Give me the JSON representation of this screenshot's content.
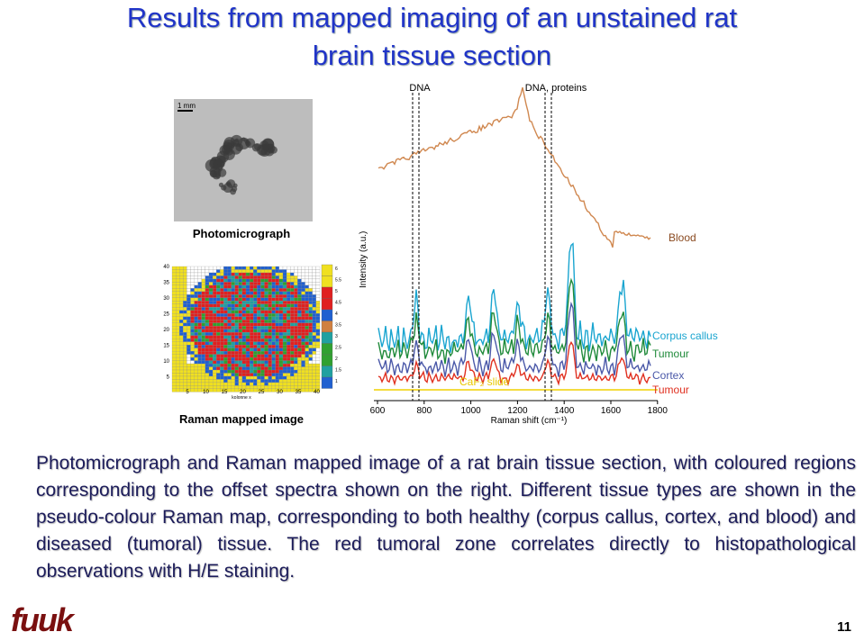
{
  "header": {
    "title": [
      "Results from mapped imaging of an unstained rat",
      "brain tissue section"
    ]
  },
  "figure": {
    "photo": {
      "scale": "1 mm",
      "label": "Photomicrograph"
    },
    "map": {
      "label": "Raman mapped image",
      "x_label": "kolonne x",
      "x_ticks": [
        "5",
        "10",
        "15",
        "20",
        "25",
        "30",
        "35",
        "40"
      ],
      "y_ticks": [
        "40",
        "35",
        "30",
        "25",
        "20",
        "15",
        "10",
        "5"
      ],
      "scale_ticks": [
        "6",
        "5.5",
        "5",
        "4.5",
        "4",
        "3.5",
        "3",
        "2.5",
        "2",
        "1.5",
        "1"
      ]
    },
    "spectra": {
      "markers": [
        "DNA",
        "DNA, proteins"
      ],
      "y_label": "Intensity (a.u.)",
      "x_label": "Raman shift (cm⁻¹)",
      "x_ticks": [
        "600",
        "800",
        "1000",
        "1200",
        "1400",
        "1600",
        "1800"
      ],
      "slide_label": "CaF₂ slide",
      "curve_labels": [
        "Blood",
        "Corpus callus",
        "Tumour",
        "Cortex",
        "Tumour"
      ]
    }
  },
  "body": {
    "paragraph": "Photomicrograph and Raman mapped image of a rat brain tissue section, with coloured regions corresponding to the offset spectra shown on the right. Different tissue types are shown in the pseudo-colour Raman map, corresponding to both healthy (corpus callus, cortex, and blood) and diseased (tumoral) tissue. The red tumoral zone correlates directly to histopathological observations with H/E staining."
  },
  "footer": {
    "logo": "fuuk",
    "page": "11"
  }
}
